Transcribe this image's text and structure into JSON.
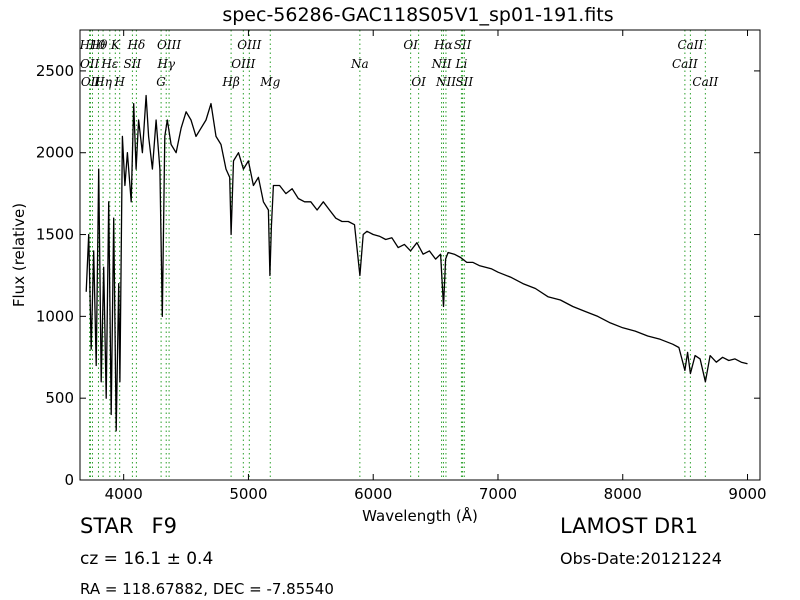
{
  "header": {
    "title": "spec-56286-GAC118S05V1_sp01-191.fits"
  },
  "footer": {
    "class_label": "STAR",
    "subclass": "F9",
    "survey": "LAMOST DR1",
    "cz_text": "cz = 16.1",
    "cz_err_text": "± 0.4",
    "obs_date": "Obs-Date:20121224",
    "radec": "RA = 118.67882, DEC = -7.85540"
  },
  "colors": {
    "spectrum": "#000000",
    "line_markers": "#2ca02c"
  },
  "chart_data": {
    "type": "line",
    "title": "spec-56286-GAC118S05V1_sp01-191.fits",
    "xlabel": "Wavelength (Å)",
    "ylabel": "Flux (relative)",
    "xlim": [
      3650,
      9100
    ],
    "ylim": [
      0,
      2750
    ],
    "xticks": [
      4000,
      5000,
      6000,
      7000,
      8000,
      9000
    ],
    "yticks": [
      0,
      500,
      1000,
      1500,
      2000,
      2500
    ],
    "grid": false,
    "series": [
      {
        "x": [
          3700,
          3720,
          3740,
          3760,
          3780,
          3800,
          3820,
          3840,
          3860,
          3880,
          3900,
          3920,
          3940,
          3960,
          3970,
          3990,
          4010,
          4030,
          4060,
          4080,
          4100,
          4120,
          4150,
          4180,
          4200,
          4230,
          4260,
          4290,
          4310,
          4330,
          4350,
          4380,
          4420,
          4460,
          4500,
          4540,
          4580,
          4620,
          4660,
          4700,
          4740,
          4780,
          4820,
          4850,
          4861,
          4880,
          4920,
          4960,
          5000,
          5040,
          5080,
          5120,
          5160,
          5172,
          5184,
          5200,
          5250,
          5300,
          5350,
          5400,
          5450,
          5500,
          5550,
          5600,
          5650,
          5700,
          5750,
          5800,
          5850,
          5893,
          5920,
          5950,
          6000,
          6050,
          6100,
          6150,
          6200,
          6250,
          6300,
          6350,
          6400,
          6450,
          6500,
          6540,
          6563,
          6580,
          6600,
          6650,
          6700,
          6750,
          6800,
          6850,
          6900,
          6950,
          7000,
          7100,
          7200,
          7300,
          7400,
          7500,
          7600,
          7700,
          7800,
          7900,
          8000,
          8100,
          8200,
          8300,
          8400,
          8450,
          8498,
          8520,
          8542,
          8580,
          8620,
          8662,
          8700,
          8750,
          8800,
          8850,
          8900,
          8950,
          9000
        ],
        "y": [
          1150,
          1500,
          800,
          1400,
          700,
          1900,
          600,
          1300,
          500,
          1700,
          400,
          1600,
          300,
          1200,
          600,
          2100,
          1800,
          2000,
          1700,
          2300,
          1900,
          2200,
          2000,
          2350,
          2100,
          1900,
          2200,
          1900,
          1000,
          2100,
          2200,
          2050,
          2000,
          2150,
          2250,
          2200,
          2100,
          2150,
          2200,
          2300,
          2100,
          2050,
          1900,
          1850,
          1500,
          1950,
          2000,
          1900,
          1950,
          1800,
          1850,
          1700,
          1650,
          1250,
          1550,
          1800,
          1800,
          1750,
          1780,
          1720,
          1700,
          1700,
          1650,
          1700,
          1650,
          1600,
          1580,
          1580,
          1560,
          1250,
          1500,
          1520,
          1500,
          1490,
          1470,
          1480,
          1420,
          1440,
          1400,
          1450,
          1380,
          1400,
          1350,
          1380,
          1060,
          1350,
          1390,
          1380,
          1360,
          1330,
          1330,
          1310,
          1300,
          1290,
          1270,
          1240,
          1200,
          1170,
          1120,
          1100,
          1060,
          1030,
          1000,
          960,
          930,
          910,
          880,
          860,
          830,
          810,
          670,
          780,
          650,
          760,
          740,
          600,
          760,
          720,
          750,
          730,
          740,
          720,
          710
        ]
      }
    ],
    "lines": [
      {
        "wl": 3727,
        "label": "OII",
        "row": 1
      },
      {
        "wl": 3734,
        "label": "OII",
        "row": 2
      },
      {
        "wl": 3750,
        "label": "H10",
        "row": 0
      },
      {
        "wl": 3798,
        "label": "Hθ",
        "row": 0
      },
      {
        "wl": 3835,
        "label": "Hη",
        "row": 2
      },
      {
        "wl": 3889,
        "label": "Hε",
        "row": 1
      },
      {
        "wl": 3933,
        "label": "K",
        "row": 0
      },
      {
        "wl": 3968,
        "label": "H",
        "row": 2
      },
      {
        "wl": 4070,
        "label": "SII",
        "row": 1
      },
      {
        "wl": 4102,
        "label": "Hδ",
        "row": 0
      },
      {
        "wl": 4300,
        "label": "G",
        "row": 2
      },
      {
        "wl": 4341,
        "label": "Hγ",
        "row": 1
      },
      {
        "wl": 4364,
        "label": "OIII",
        "row": 0
      },
      {
        "wl": 4861,
        "label": "Hβ",
        "row": 2
      },
      {
        "wl": 4959,
        "label": "OIII",
        "row": 1
      },
      {
        "wl": 5007,
        "label": "OIII",
        "row": 0
      },
      {
        "wl": 5175,
        "label": "Mg",
        "row": 2
      },
      {
        "wl": 5893,
        "label": "Na",
        "row": 1
      },
      {
        "wl": 6300,
        "label": "OI",
        "row": 0
      },
      {
        "wl": 6364,
        "label": "OI",
        "row": 2
      },
      {
        "wl": 6548,
        "label": "NII",
        "row": 1
      },
      {
        "wl": 6563,
        "label": "Hα",
        "row": 0
      },
      {
        "wl": 6583,
        "label": "NII",
        "row": 2
      },
      {
        "wl": 6707,
        "label": "Li",
        "row": 1
      },
      {
        "wl": 6716,
        "label": "SII",
        "row": 0
      },
      {
        "wl": 6730,
        "label": "SII",
        "row": 2
      },
      {
        "wl": 8498,
        "label": "CaII",
        "row": 1
      },
      {
        "wl": 8542,
        "label": "CaII",
        "row": 0
      },
      {
        "wl": 8662,
        "label": "CaII",
        "row": 2
      }
    ]
  }
}
